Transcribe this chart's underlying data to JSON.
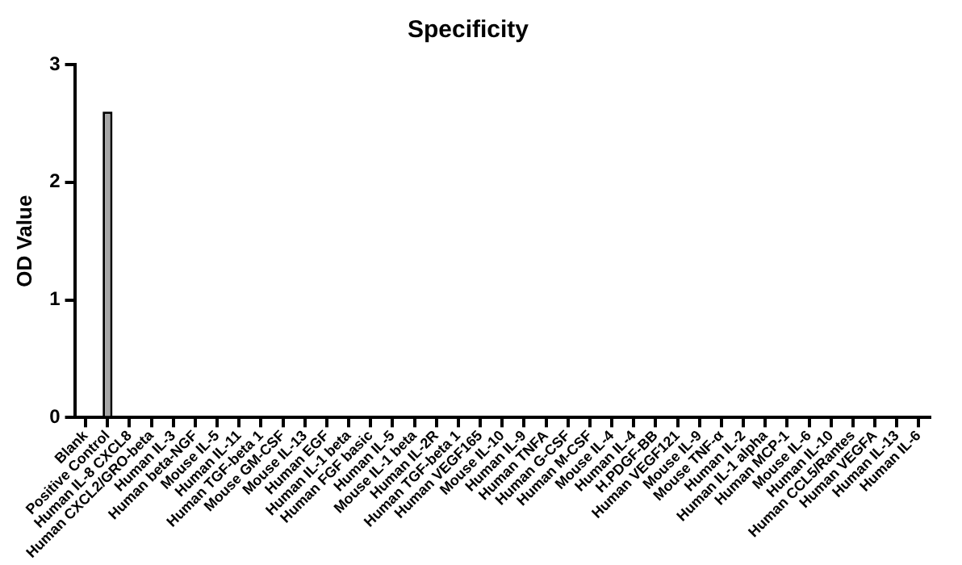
{
  "chart_data": {
    "type": "bar",
    "title": "Specificity",
    "ylabel": "OD Value",
    "categories": [
      "Blank",
      "Positive Control",
      "Human IL-8 CXCL8",
      "Human CXCL2/GRO-beta",
      "Human IL-3",
      "Human beta-NGF",
      "Mouse IL-5",
      "Human IL-11",
      "Human TGF-beta 1",
      "Mouse GM-CSF",
      "Mouse IL-13",
      "Human EGF",
      "Human IL-1 beta",
      "Human FGF basic",
      "Human IL-5",
      "Mouse IL-1 beta",
      "Human IL-2R",
      "Human TGF-beta 1",
      "Human VEGF165",
      "Mouse IL-10",
      "Human IL-9",
      "Human TNFA",
      "Human G-CSF",
      "Human M-CSF",
      "Mouse IL-4",
      "Human IL-4",
      "H.PDGF-BB",
      "Human VEGF121",
      "Mouse IL-9",
      "Mouse TNF-α",
      "Human IL-2",
      "Human IL-1 alpha",
      "Human MCP-1",
      "Mouse IL-6",
      "Human IL-10",
      "Human CCL5/Rantes",
      "Human VEGFA",
      "Human IL-13",
      "Human IL-6"
    ],
    "values": [
      0,
      2.6,
      0,
      0,
      0,
      0,
      0,
      0,
      0,
      0,
      0,
      0,
      0,
      0,
      0,
      0,
      0,
      0,
      0,
      0,
      0,
      0,
      0,
      0,
      0,
      0,
      0,
      0,
      0,
      0,
      0,
      0,
      0,
      0,
      0,
      0,
      0,
      0,
      0
    ],
    "color": "#a6a6a6",
    "ylim": [
      0,
      3
    ],
    "yticks": [
      0,
      1,
      2,
      3
    ]
  }
}
